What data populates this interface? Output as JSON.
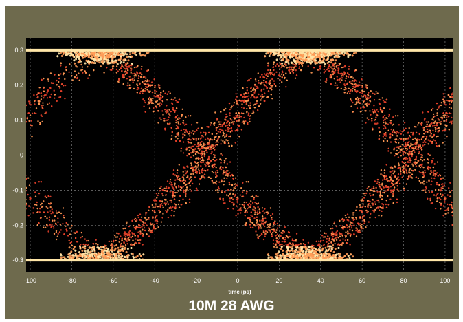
{
  "chart_data": {
    "type": "scatter",
    "title": "",
    "xlabel": "time (ps)",
    "ylabel": "",
    "caption": "10M 28 AWG",
    "xlim": [
      -102,
      104
    ],
    "ylim": [
      -0.335,
      0.335
    ],
    "x_ticks": [
      -100,
      -80,
      -60,
      -40,
      -20,
      0,
      20,
      40,
      60,
      80,
      100
    ],
    "x_tick_labels": [
      "-100",
      "-80",
      "-60",
      "-40",
      "-20",
      "0",
      "20",
      "40",
      "60",
      "80",
      "100"
    ],
    "y_ticks": [
      0.3,
      0.2,
      0.1,
      0,
      -0.1,
      -0.2,
      -0.3
    ],
    "y_tick_labels": [
      "0.3",
      "0.2",
      "0.1",
      "0",
      "-0.1",
      "-0.2",
      "-0.3"
    ],
    "grid": true,
    "levels": {
      "high": 0.3,
      "low": -0.3
    },
    "unit_interval_ps": 100,
    "eye_crossings_ps": [
      -16,
      84
    ],
    "colors": {
      "background": "#6e6a4d",
      "plot_background": "#000000",
      "grid": "#7c7c7c",
      "trace_core": "#ffe6a8",
      "trace_mid": "#ff9a55",
      "trace_outer": "#e8402a",
      "text": "#ffffff"
    }
  }
}
